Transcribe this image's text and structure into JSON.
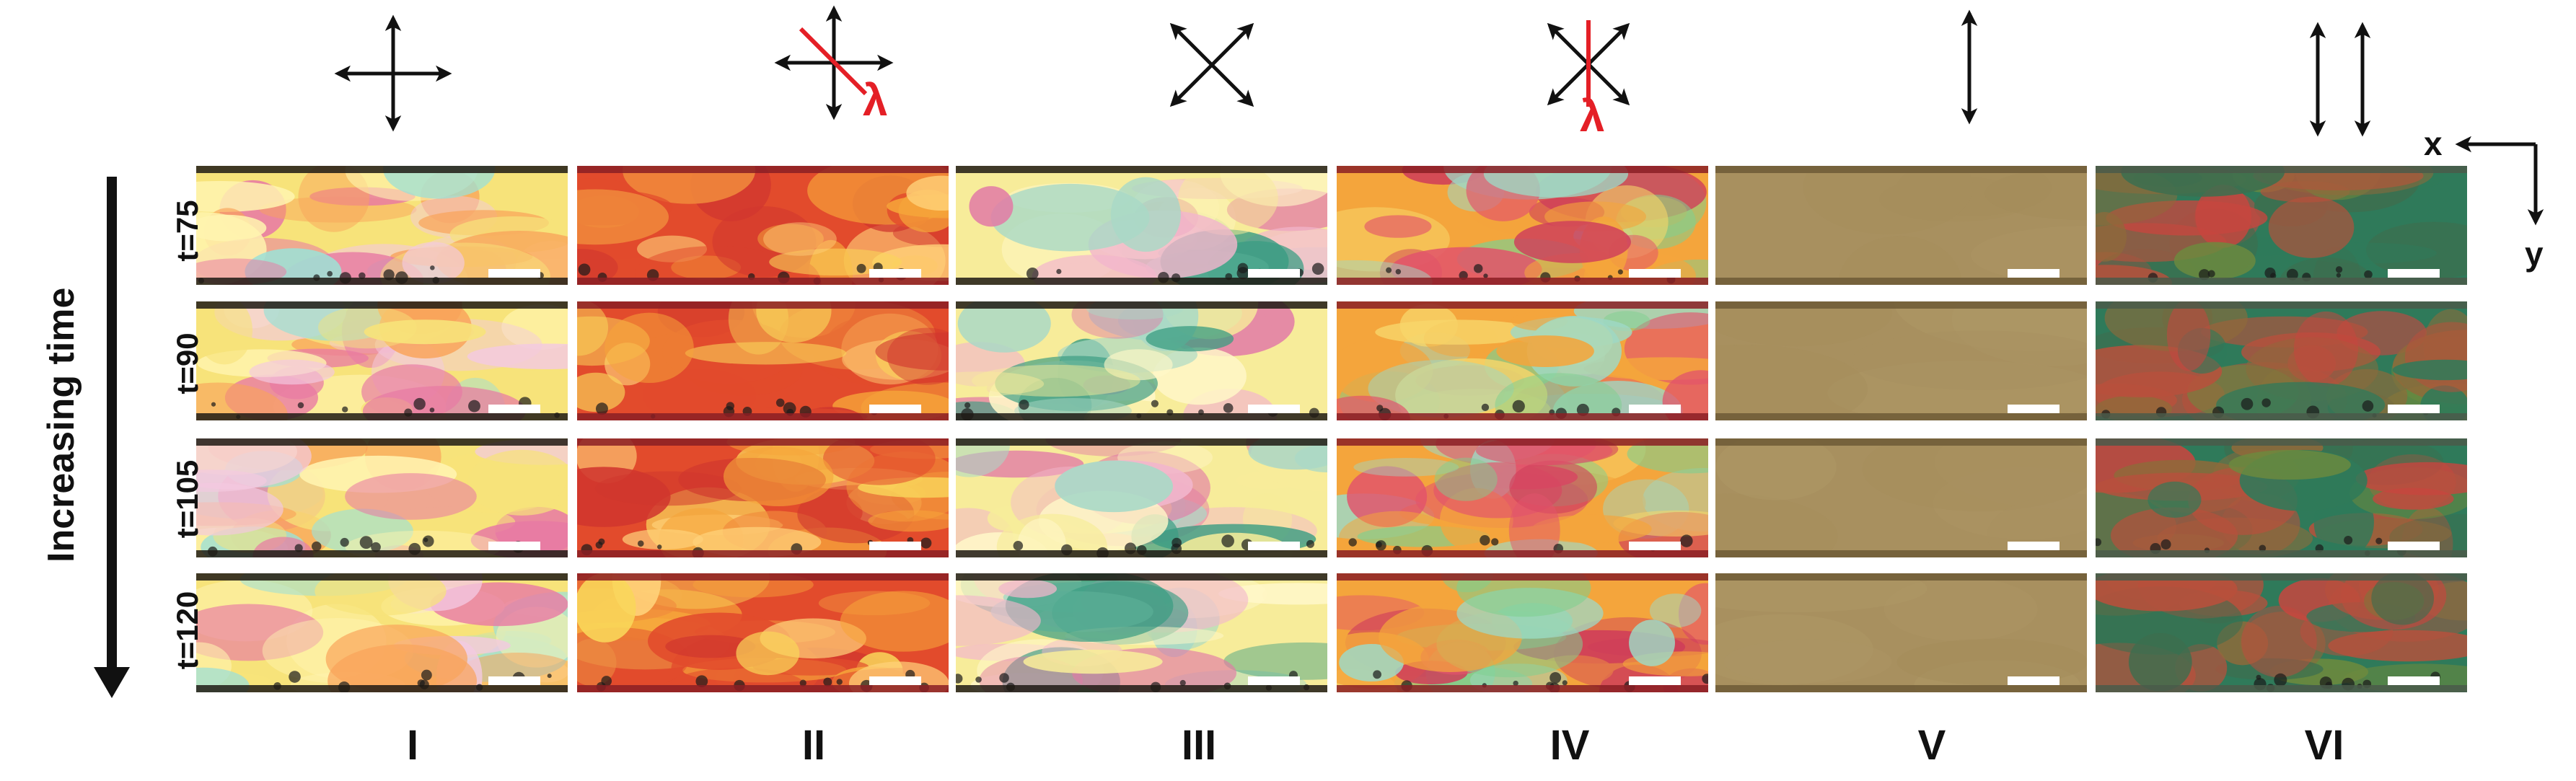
{
  "time_axis": {
    "label": "Increasing time"
  },
  "rows": [
    {
      "label": "t=75"
    },
    {
      "label": "t=90"
    },
    {
      "label": "t=105"
    },
    {
      "label": "t=120"
    }
  ],
  "columns": [
    {
      "label": "I",
      "icon": "crossed-polarizers-icon",
      "lambda": ""
    },
    {
      "label": "II",
      "icon": "crossed-polarizers-lambda-icon",
      "lambda": "λ"
    },
    {
      "label": "III",
      "icon": "rotated-crossed-polarizers-icon",
      "lambda": ""
    },
    {
      "label": "IV",
      "icon": "rotated-polarizers-lambda-icon",
      "lambda": "λ"
    },
    {
      "label": "V",
      "icon": "single-polarizer-icon",
      "lambda": ""
    },
    {
      "label": "VI",
      "icon": "double-polarizer-icon",
      "lambda": ""
    }
  ],
  "axes": {
    "x": "x",
    "y": "y"
  },
  "colors": {
    "arrow": "#111111",
    "lambda": "#e41f26",
    "brightfield": "#a8905f"
  }
}
